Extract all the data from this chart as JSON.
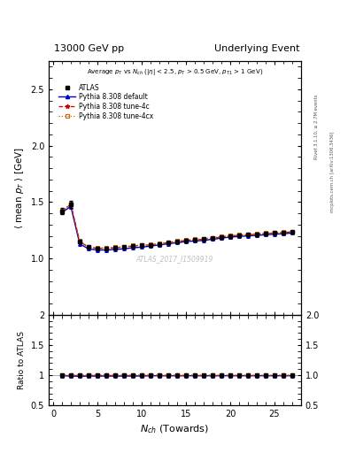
{
  "title_left": "13000 GeV pp",
  "title_right": "Underlying Event",
  "right_label1": "Rivet 3.1.10, ≥ 2.7M events",
  "right_label2": "mcplots.cern.ch [arXiv:1306.3436]",
  "watermark": "ATLAS_2017_I1509919",
  "xlabel": "N_{ch} (Towards)",
  "ylabel": "⟨ mean p_{T} ⟩ [GeV]",
  "ylabel_ratio": "Ratio to ATLAS",
  "ylim_main": [
    0.5,
    2.75
  ],
  "ylim_ratio": [
    0.5,
    2.0
  ],
  "yticks_main": [
    1.0,
    1.5,
    2.0,
    2.5
  ],
  "yticks_ratio": [
    0.5,
    1.0,
    1.5,
    2.0
  ],
  "xlim": [
    -0.5,
    28
  ],
  "xticks": [
    0,
    5,
    10,
    15,
    20,
    25
  ],
  "nch": [
    1,
    2,
    3,
    4,
    5,
    6,
    7,
    8,
    9,
    10,
    11,
    12,
    13,
    14,
    15,
    16,
    17,
    18,
    19,
    20,
    21,
    22,
    23,
    24,
    25,
    26,
    27
  ],
  "data_y": [
    1.42,
    1.48,
    1.15,
    1.1,
    1.09,
    1.09,
    1.095,
    1.1,
    1.11,
    1.115,
    1.12,
    1.13,
    1.14,
    1.15,
    1.16,
    1.165,
    1.17,
    1.18,
    1.19,
    1.2,
    1.205,
    1.21,
    1.215,
    1.22,
    1.225,
    1.23,
    1.235
  ],
  "data_err": [
    0.03,
    0.03,
    0.015,
    0.012,
    0.01,
    0.01,
    0.01,
    0.01,
    0.01,
    0.01,
    0.01,
    0.01,
    0.01,
    0.01,
    0.01,
    0.01,
    0.01,
    0.01,
    0.01,
    0.01,
    0.01,
    0.01,
    0.01,
    0.01,
    0.01,
    0.01,
    0.01
  ],
  "py_default_y": [
    1.41,
    1.46,
    1.13,
    1.085,
    1.075,
    1.075,
    1.08,
    1.085,
    1.095,
    1.1,
    1.11,
    1.12,
    1.13,
    1.14,
    1.15,
    1.155,
    1.16,
    1.17,
    1.18,
    1.19,
    1.195,
    1.2,
    1.205,
    1.21,
    1.215,
    1.22,
    1.225
  ],
  "py_4c_y": [
    1.42,
    1.48,
    1.15,
    1.1,
    1.09,
    1.09,
    1.095,
    1.1,
    1.11,
    1.115,
    1.12,
    1.13,
    1.14,
    1.15,
    1.16,
    1.165,
    1.17,
    1.18,
    1.19,
    1.2,
    1.205,
    1.21,
    1.215,
    1.22,
    1.225,
    1.23,
    1.235
  ],
  "py_4cx_y": [
    1.425,
    1.485,
    1.155,
    1.105,
    1.095,
    1.095,
    1.1,
    1.105,
    1.115,
    1.12,
    1.125,
    1.135,
    1.145,
    1.155,
    1.165,
    1.17,
    1.175,
    1.185,
    1.195,
    1.205,
    1.21,
    1.215,
    1.22,
    1.225,
    1.23,
    1.235,
    1.24
  ],
  "color_default": "#0000cc",
  "color_4c": "#cc0000",
  "color_4cx": "#cc6600",
  "color_data": "#000000",
  "color_watermark": "#c0c0c0",
  "bg_color": "#ffffff"
}
